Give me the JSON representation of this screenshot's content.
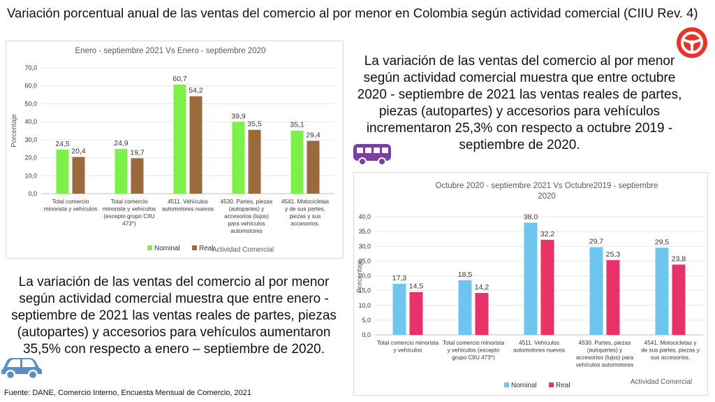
{
  "title": "Variación porcentual anual de las ventas del comercio al por menor en Colombia según actividad comercial (CIIU Rev. 4)",
  "paragraphs": {
    "right": "La variación de las ventas del comercio al por menor según actividad comercial muestra que entre octubre 2020 - septiembre de 2021 las ventas reales de partes, piezas (autopartes) y accesorios para vehículos incrementaron 25,3% con respecto a octubre 2019 - septiembre de 2020.",
    "left": "La variación de las ventas del comercio al por menor según actividad comercial muestra que entre enero - septiembre de 2021 las ventas reales de partes, piezas (autopartes) y accesorios para vehículos aumentaron 35,5% con respecto a enero – septiembre de 2020."
  },
  "source": "Fuente: DANE, Comercio Interno, Encuesta Mensual de Comercio, 2021",
  "icons": {
    "wheel": "steering-wheel-icon",
    "bus": "bus-icon",
    "car": "car-icon"
  },
  "colors": {
    "wheel": "#e8332a",
    "bus": "#7b3fa0",
    "car": "#5b8fc4"
  },
  "chart_data": [
    {
      "type": "bar",
      "title": "Enero - septiembre 2021 Vs Enero - septiembre 2020",
      "ylabel": "Porcentaje",
      "xlabel": "Actividad Comercial",
      "ylim": [
        0,
        70
      ],
      "yticks": [
        "0,0",
        "10,0",
        "20,0",
        "30,0",
        "40,0",
        "50,0",
        "60,0",
        "70,0"
      ],
      "categories": [
        [
          "Total comercio",
          "minorista y vehículos"
        ],
        [
          "Total comercio",
          "minorista y vehículos",
          "(excepto grupo CIIU",
          "473*)"
        ],
        [
          "4511. Vehículos",
          "automotores nuevos"
        ],
        [
          "4530. Partes, piezas",
          "(autopartes) y",
          "accesorios (lujos)",
          "para vehículos",
          "automotores"
        ],
        [
          "4541. Motocicletas",
          "y de sus partes,",
          "piezas y sus",
          "accesorios."
        ]
      ],
      "series": [
        {
          "name": "Nominal",
          "color": "#7df04a",
          "values": [
            24.5,
            24.9,
            60.7,
            39.9,
            35.1
          ],
          "labels": [
            "24,5",
            "24,9",
            "60,7",
            "39,9",
            "35,1"
          ]
        },
        {
          "name": "Real",
          "color": "#9a6a3c",
          "values": [
            20.4,
            19.7,
            54.2,
            35.5,
            29.4
          ],
          "labels": [
            "20,4",
            "19,7",
            "54,2",
            "35,5",
            "29,4"
          ]
        }
      ],
      "legend": "bottom"
    },
    {
      "type": "bar",
      "title": [
        "Octubre 2020 - septiembre 2021 Vs Octubre2019 - septiembre",
        "2020"
      ],
      "ylabel": "Porcentaje",
      "xlabel": "Actividad Comercial",
      "ylim": [
        0,
        40
      ],
      "yticks": [
        "0,0",
        "5,0",
        "10,0",
        "15,0",
        "20,0",
        "25,0",
        "30,0",
        "35,0",
        "40,0"
      ],
      "categories": [
        [
          "Total comercio minorista",
          "y vehículos"
        ],
        [
          "Total comercio minorista",
          "y vehículos (excepto",
          "grupo CIIU 473*)"
        ],
        [
          "4511. Vehículos",
          "automotores nuevos"
        ],
        [
          "4530. Partes, piezas",
          "(autopartes) y",
          "accesorios (lujos) para",
          "vehículos automotores"
        ],
        [
          "4541. Motocicletas y",
          "de sus partes, piezas y",
          "sus accesorios."
        ]
      ],
      "series": [
        {
          "name": "Nominal",
          "color": "#6ec6f0",
          "values": [
            17.3,
            18.5,
            38.0,
            29.7,
            29.5
          ],
          "labels": [
            "17,3",
            "18,5",
            "38,0",
            "29,7",
            "29,5"
          ]
        },
        {
          "name": "Real",
          "color": "#e8336a",
          "values": [
            14.5,
            14.2,
            32.2,
            25.3,
            23.8
          ],
          "labels": [
            "14,5",
            "14,2",
            "32,2",
            "25,3",
            "23,8"
          ]
        }
      ],
      "legend": "bottom"
    }
  ]
}
